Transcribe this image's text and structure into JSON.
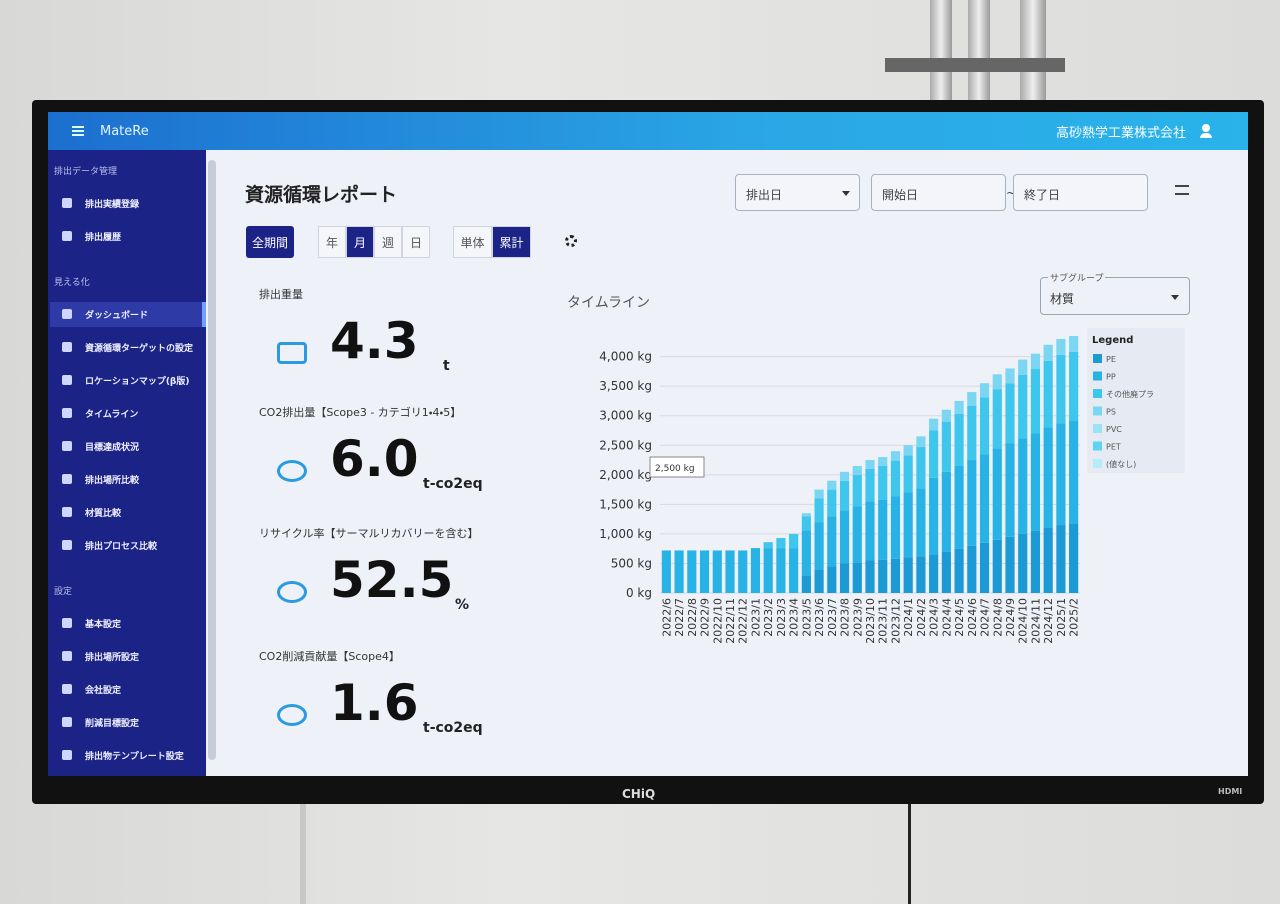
{
  "header": {
    "app_name": "MateRe",
    "company": "高砂熱学工業株式会社"
  },
  "sidebar": {
    "sections": [
      {
        "title": "排出データ管理",
        "items": [
          "排出実績登録",
          "排出履歴"
        ]
      },
      {
        "title": "見える化",
        "items": [
          "ダッシュボード",
          "資源循環ターゲットの設定",
          "ロケーションマップ(β版)",
          "タイムライン",
          "目標達成状況",
          "排出場所比較",
          "材質比較",
          "排出プロセス比較"
        ]
      },
      {
        "title": "設定",
        "items": [
          "基本設定",
          "排出場所設定",
          "会社設定",
          "削減目標設定",
          "排出物テンプレート設定"
        ]
      }
    ]
  },
  "page": {
    "title": "資源循環レポート"
  },
  "filters": {
    "date_type": "排出日",
    "start": "開始日",
    "tilde": "~",
    "end": "終了日"
  },
  "toolbar": {
    "all_period": "全期間",
    "periods": [
      "年",
      "月",
      "週",
      "日"
    ],
    "modes": [
      "単体",
      "累計"
    ]
  },
  "kpis": [
    {
      "label": "排出重量",
      "value": "4.3",
      "unit": "t"
    },
    {
      "label": "CO2排出量【Scope3 - カテゴリ1・4・5】",
      "value": "6.0",
      "unit": "t-co2eq"
    },
    {
      "label": "リサイクル率【サーマルリカバリーを含む】",
      "value": "52.5",
      "unit": "%"
    },
    {
      "label": "CO2削減貢献量【Scope4】",
      "value": "1.6",
      "unit": "t-co2eq"
    }
  ],
  "chart_data": {
    "type": "stacked-bar",
    "title": "タイムライン",
    "subgroup_label": "サブグループ",
    "subgroup_value": "材質",
    "legend_title": "Legend",
    "tooltip": "2,500 kg",
    "categories": [
      "2022/6",
      "2022/7",
      "2022/8",
      "2022/9",
      "2022/10",
      "2022/11",
      "2022/12",
      "2023/1",
      "2023/2",
      "2023/3",
      "2023/4",
      "2023/5",
      "2023/6",
      "2023/7",
      "2023/8",
      "2023/9",
      "2023/10",
      "2023/11",
      "2023/12",
      "2024/1",
      "2024/2",
      "2024/3",
      "2024/4",
      "2024/5",
      "2024/6",
      "2024/7",
      "2024/8",
      "2024/9",
      "2024/10",
      "2024/11",
      "2024/12",
      "2025/1",
      "2025/2"
    ],
    "series": [
      {
        "name": "PE",
        "color": "#1b9ad6",
        "values": [
          0,
          0,
          0,
          0,
          0,
          0,
          0,
          0,
          0,
          0,
          0,
          300,
          400,
          450,
          500,
          520,
          550,
          560,
          580,
          600,
          620,
          650,
          700,
          750,
          800,
          850,
          900,
          950,
          1000,
          1050,
          1100,
          1150,
          1180
        ]
      },
      {
        "name": "PP",
        "color": "#27b3e6",
        "values": [
          720,
          720,
          720,
          720,
          720,
          720,
          720,
          760,
          760,
          760,
          760,
          760,
          800,
          850,
          900,
          950,
          1000,
          1020,
          1060,
          1100,
          1150,
          1300,
          1350,
          1400,
          1450,
          1500,
          1550,
          1580,
          1620,
          1650,
          1700,
          1720,
          1730
        ]
      },
      {
        "name": "その他廃プラ",
        "color": "#3fc6ec",
        "values": [
          0,
          0,
          0,
          0,
          0,
          0,
          0,
          0,
          100,
          170,
          240,
          240,
          400,
          450,
          500,
          530,
          550,
          570,
          600,
          630,
          700,
          800,
          850,
          880,
          920,
          960,
          1000,
          1020,
          1070,
          1090,
          1130,
          1160,
          1170
        ]
      },
      {
        "name": "PS",
        "color": "#7ad6f1",
        "values": [
          0,
          0,
          0,
          0,
          0,
          0,
          0,
          0,
          0,
          0,
          0,
          50,
          150,
          150,
          150,
          150,
          150,
          150,
          160,
          170,
          180,
          200,
          200,
          220,
          230,
          240,
          250,
          250,
          260,
          260,
          270,
          270,
          270
        ]
      },
      {
        "name": "PVC",
        "color": "#9be2f5",
        "values": [
          0,
          0,
          0,
          0,
          0,
          0,
          0,
          0,
          0,
          0,
          0,
          0,
          0,
          0,
          0,
          0,
          0,
          0,
          0,
          0,
          0,
          0,
          0,
          0,
          0,
          0,
          0,
          0,
          0,
          0,
          0,
          0,
          0
        ]
      },
      {
        "name": "PET",
        "color": "#5fd2ef",
        "values": [
          0,
          0,
          0,
          0,
          0,
          0,
          0,
          0,
          0,
          0,
          0,
          0,
          0,
          0,
          0,
          0,
          0,
          0,
          0,
          0,
          0,
          0,
          0,
          0,
          0,
          0,
          0,
          0,
          0,
          0,
          0,
          0,
          0
        ]
      },
      {
        "name": "(値なし)",
        "color": "#b6ebf8",
        "values": [
          0,
          0,
          0,
          0,
          0,
          0,
          0,
          0,
          0,
          0,
          0,
          0,
          0,
          0,
          0,
          0,
          0,
          0,
          0,
          0,
          0,
          0,
          0,
          0,
          0,
          0,
          0,
          0,
          0,
          0,
          0,
          0,
          0
        ]
      }
    ],
    "ylim": [
      0,
      4400
    ],
    "yticks": [
      {
        "value": 0,
        "label": "0 kg"
      },
      {
        "value": 500,
        "label": "500 kg"
      },
      {
        "value": 1000,
        "label": "1,000 kg"
      },
      {
        "value": 1500,
        "label": "1,500 kg"
      },
      {
        "value": 2000,
        "label": "2,000 kg"
      },
      {
        "value": 2500,
        "label": "2,500 kg"
      },
      {
        "value": 3000,
        "label": "3,000 kg"
      },
      {
        "value": 3500,
        "label": "3,500 kg"
      },
      {
        "value": 4000,
        "label": "4,000 kg"
      }
    ],
    "grid": true
  },
  "tv": {
    "brand": "CHiQ",
    "port": "HDMI"
  }
}
